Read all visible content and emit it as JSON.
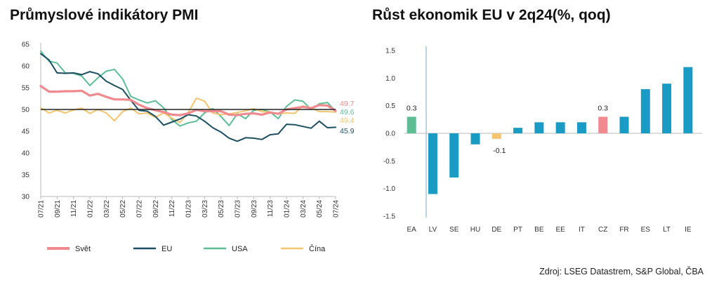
{
  "pmi": {
    "title": "Průmyslové indikátory PMI",
    "chart_data": {
      "type": "line",
      "title": "Průmyslové indikátory PMI",
      "x": [
        "07/21",
        "08/21",
        "09/21",
        "10/21",
        "11/21",
        "12/21",
        "01/22",
        "02/22",
        "03/22",
        "04/22",
        "05/22",
        "06/22",
        "07/22",
        "08/22",
        "09/22",
        "10/22",
        "11/22",
        "12/22",
        "01/23",
        "02/23",
        "03/23",
        "04/23",
        "05/23",
        "06/23",
        "07/23",
        "08/23",
        "09/23",
        "10/23",
        "11/23",
        "12/23",
        "01/24",
        "02/24",
        "03/24",
        "04/24",
        "05/24",
        "06/24",
        "07/24"
      ],
      "xticks": [
        "07/21",
        "09/21",
        "11/21",
        "01/22",
        "03/22",
        "05/22",
        "07/22",
        "09/22",
        "11/22",
        "01/23",
        "03/23",
        "05/23",
        "07/23",
        "09/23",
        "11/23",
        "01/24",
        "03/24",
        "05/24",
        "07/24"
      ],
      "ylim": [
        30,
        65
      ],
      "yticks": [
        30,
        35,
        40,
        45,
        50,
        55,
        60,
        65
      ],
      "reference_line": 50,
      "series": [
        {
          "name": "Svět",
          "color": "#f08a8f",
          "values": [
            55.4,
            54.1,
            54.1,
            54.2,
            54.2,
            54.3,
            53.2,
            53.6,
            52.9,
            52.3,
            52.3,
            52.2,
            51.1,
            50.3,
            49.8,
            49.4,
            48.8,
            48.7,
            49.1,
            49.9,
            49.6,
            49.6,
            49.6,
            48.8,
            48.7,
            49.0,
            49.1,
            48.8,
            49.3,
            49.0,
            50.0,
            50.3,
            50.6,
            50.3,
            51.0,
            50.9,
            49.7
          ]
        },
        {
          "name": "EU",
          "color": "#1d4f63",
          "values": [
            62.8,
            61.4,
            58.4,
            58.3,
            58.4,
            58.0,
            58.7,
            58.2,
            56.5,
            55.5,
            54.6,
            52.1,
            49.8,
            49.6,
            48.4,
            46.4,
            47.1,
            47.8,
            48.8,
            48.5,
            47.3,
            45.8,
            44.8,
            43.4,
            42.7,
            43.5,
            43.4,
            43.1,
            44.2,
            44.4,
            46.6,
            46.5,
            46.1,
            45.7,
            47.3,
            45.8,
            45.9
          ]
        },
        {
          "name": "USA",
          "color": "#5dbe96",
          "values": [
            63.4,
            61.1,
            60.7,
            58.4,
            58.3,
            57.7,
            55.5,
            57.3,
            58.8,
            59.2,
            57.0,
            53.0,
            52.2,
            51.5,
            52.0,
            50.4,
            47.7,
            46.2,
            46.9,
            47.3,
            49.2,
            50.2,
            48.4,
            46.3,
            49.0,
            47.9,
            49.8,
            50.0,
            49.4,
            47.9,
            50.7,
            52.2,
            51.9,
            50.0,
            51.3,
            51.6,
            49.6
          ]
        },
        {
          "name": "Čína",
          "color": "#f5c46e",
          "values": [
            50.4,
            49.2,
            49.8,
            49.2,
            49.9,
            50.3,
            49.1,
            50.0,
            49.2,
            47.4,
            49.5,
            50.3,
            49.0,
            49.2,
            48.2,
            49.2,
            48.0,
            47.0,
            49.3,
            52.6,
            51.9,
            49.2,
            48.8,
            49.0,
            49.3,
            49.7,
            50.2,
            49.5,
            49.4,
            49.0,
            49.2,
            49.1,
            50.8,
            50.4,
            49.5,
            49.5,
            49.4
          ]
        }
      ],
      "end_labels": [
        {
          "text": "49.7",
          "color": "#f08a8f"
        },
        {
          "text": "49.6",
          "color": "#5dbe96"
        },
        {
          "text": "49.4",
          "color": "#f5c46e"
        },
        {
          "text": "45.9",
          "color": "#1d4f63"
        }
      ],
      "legend": "bottom"
    }
  },
  "growth": {
    "title": "Růst ekonomik EU v 2q24(%, qoq)",
    "chart_data": {
      "type": "bar",
      "title": "Růst ekonomik EU v 2q24(%, qoq)",
      "categories": [
        "EA",
        "LV",
        "SE",
        "HU",
        "DE",
        "PT",
        "BE",
        "EE",
        "IT",
        "CZ",
        "FR",
        "ES",
        "LT",
        "IE"
      ],
      "values": [
        0.3,
        -1.1,
        -0.8,
        -0.2,
        -0.1,
        0.1,
        0.2,
        0.2,
        0.2,
        0.3,
        0.3,
        0.8,
        0.9,
        1.2
      ],
      "colors": [
        "#5dbe96",
        "#1a9bc3",
        "#1a9bc3",
        "#1a9bc3",
        "#f5c46e",
        "#1a9bc3",
        "#1a9bc3",
        "#1a9bc3",
        "#1a9bc3",
        "#f08a8f",
        "#1a9bc3",
        "#1a9bc3",
        "#1a9bc3",
        "#1a9bc3"
      ],
      "data_labels": [
        {
          "category": "EA",
          "text": "0.3"
        },
        {
          "category": "DE",
          "text": "-0.1"
        },
        {
          "category": "CZ",
          "text": "0.3"
        }
      ],
      "ylim": [
        -1.5,
        1.5
      ],
      "yticks": [
        "1.5",
        "1.0",
        "0.5",
        "0.0",
        "-0.5",
        "-1.0",
        "-1.5"
      ],
      "ytick_values": [
        1.5,
        1.0,
        0.5,
        0.0,
        -0.5,
        -1.0,
        -1.5
      ]
    }
  },
  "source": "Zdroj: LSEG Datastrem, S&P Global, ČBA"
}
